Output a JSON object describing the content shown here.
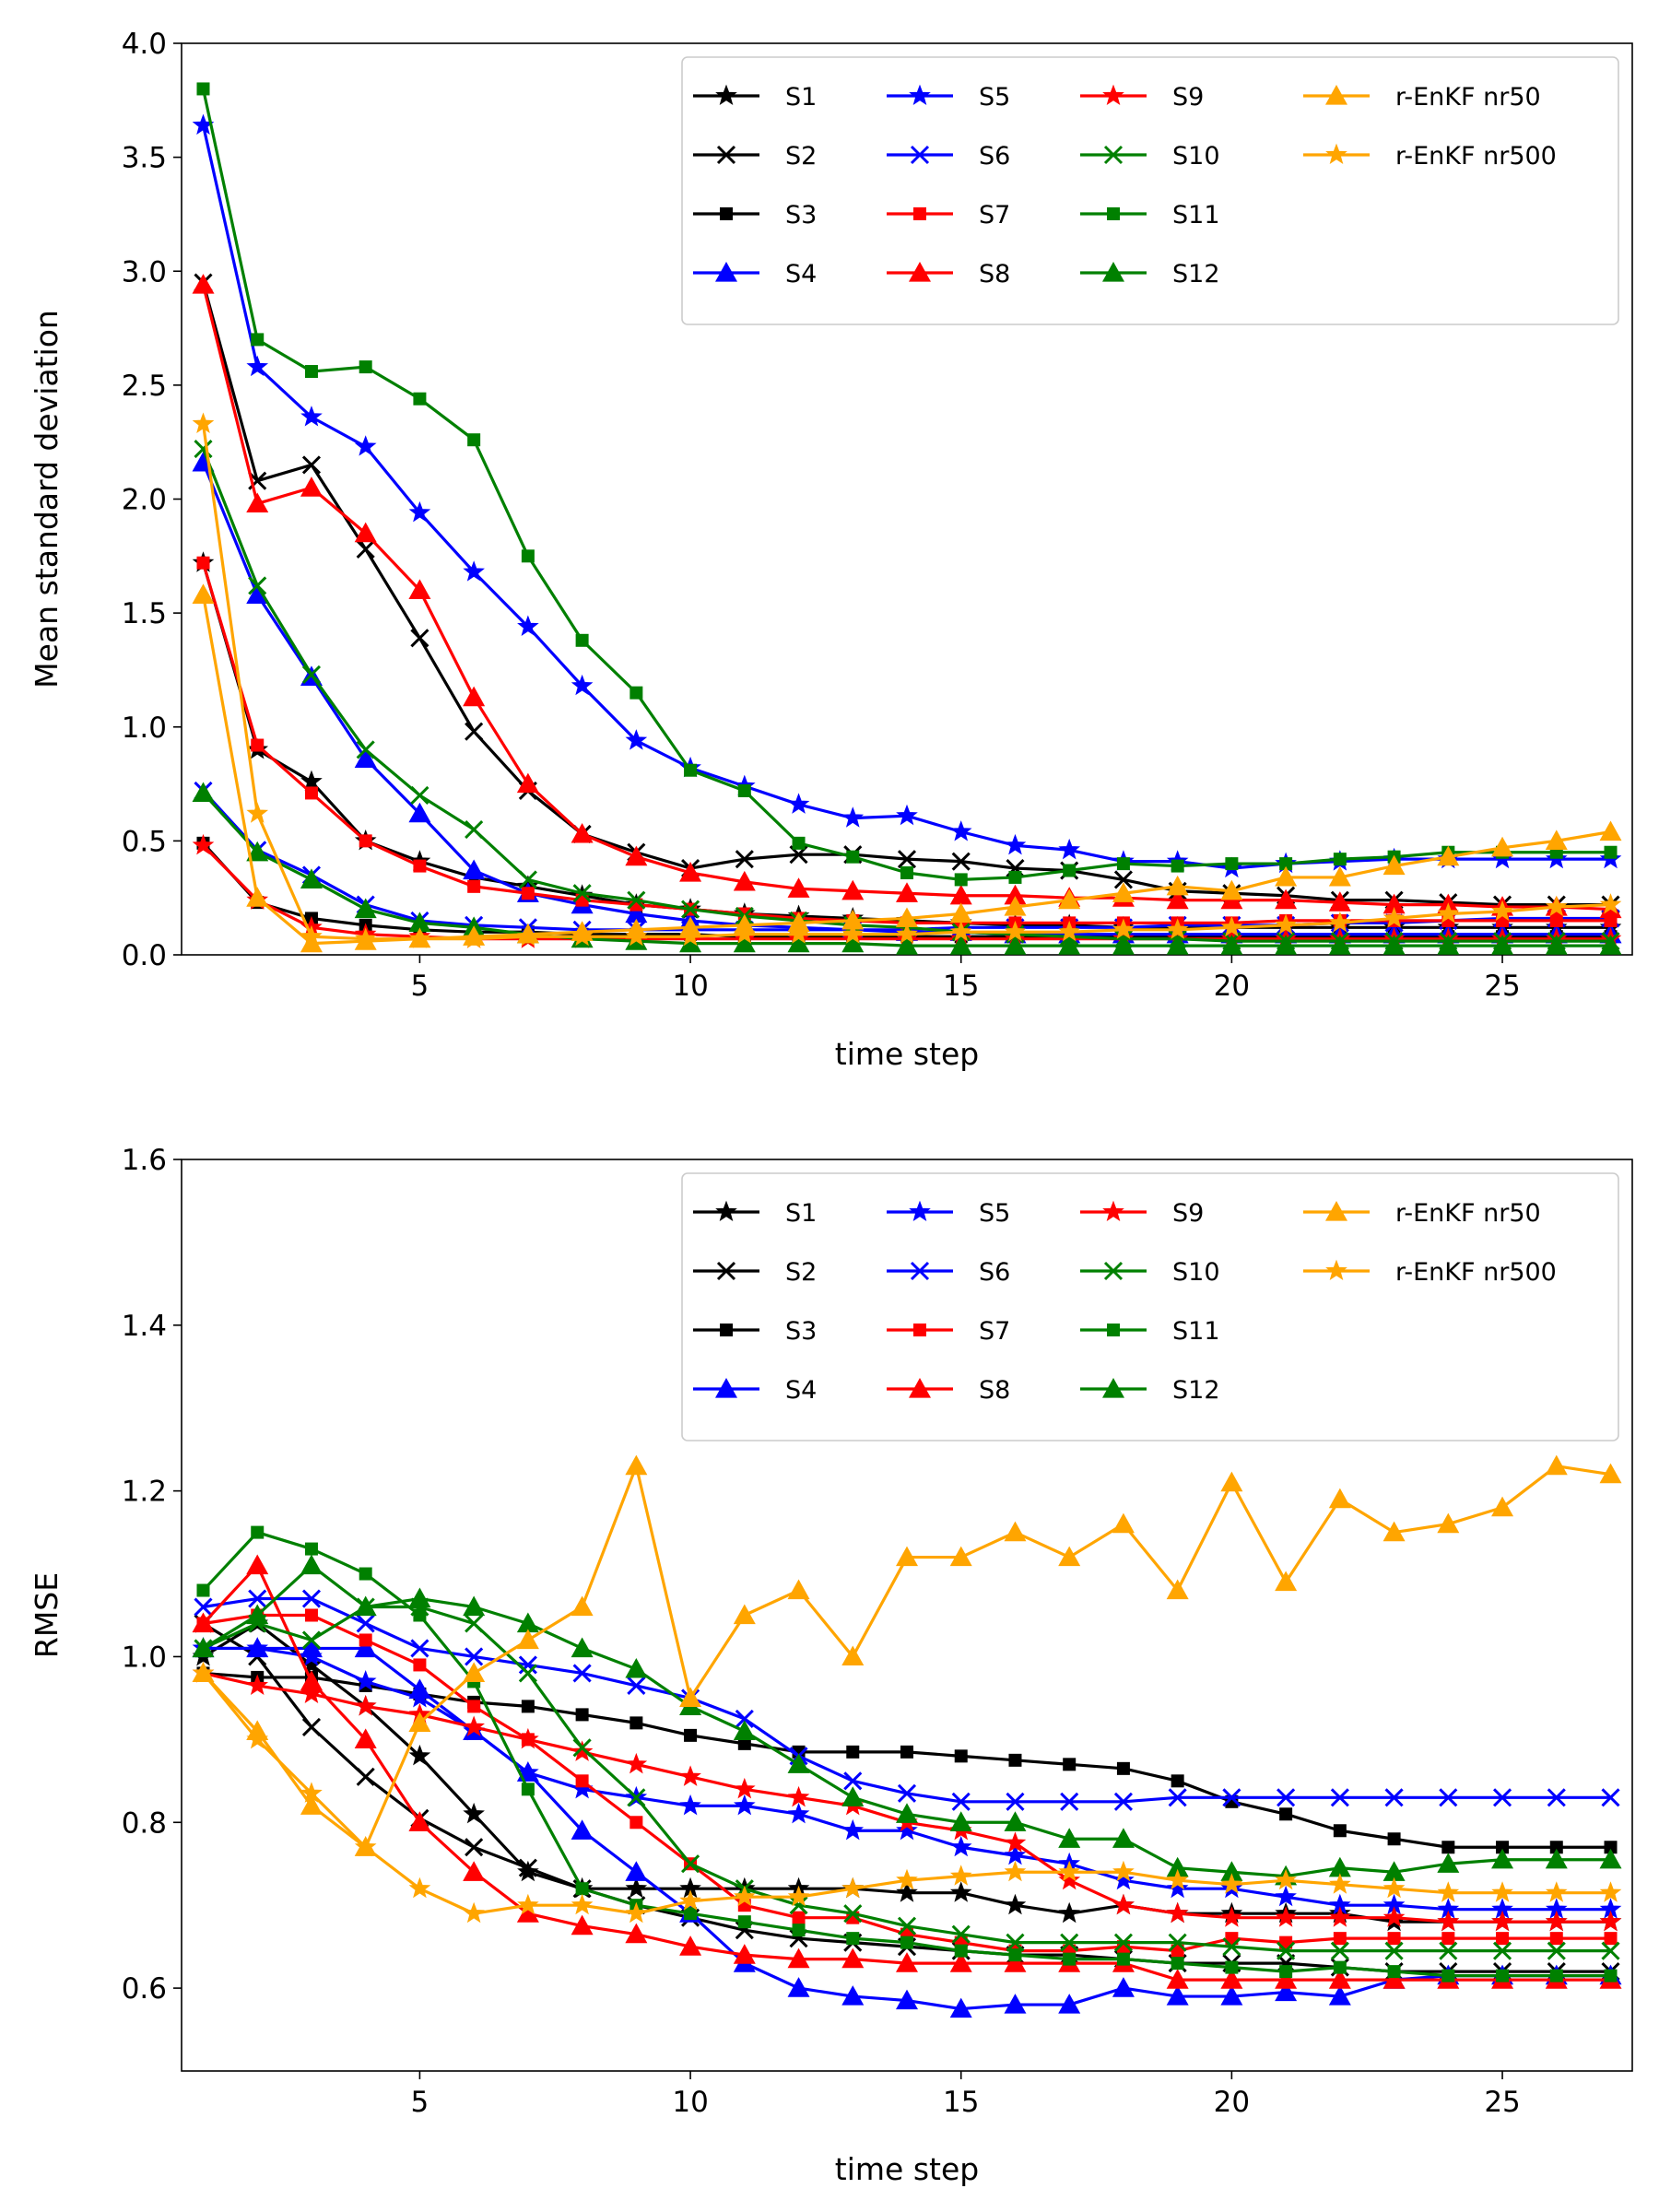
{
  "chart_data": [
    {
      "type": "line",
      "title": "",
      "xlabel": "time step",
      "ylabel": "Mean standard deviation",
      "xlim": [
        0.6,
        27.4
      ],
      "ylim": [
        0,
        4.0
      ],
      "xticks": [
        5,
        10,
        15,
        20,
        25
      ],
      "yticks": [
        0,
        0.5,
        1.0,
        1.5,
        2.0,
        2.5,
        3.0,
        3.5,
        4.0
      ],
      "ytick_labels": [
        "0.0",
        "0.5",
        "1.0",
        "1.5",
        "2.0",
        "2.5",
        "3.0",
        "3.5",
        "4.0"
      ],
      "legend_position": "top-right",
      "x": [
        1,
        2,
        3,
        4,
        5,
        6,
        7,
        8,
        9,
        10,
        11,
        12,
        13,
        14,
        15,
        16,
        17,
        18,
        19,
        20,
        21,
        22,
        23,
        24,
        25,
        26,
        27
      ],
      "series": [
        {
          "name": "S1",
          "color": "#000000",
          "marker": "star",
          "values": [
            1.72,
            0.9,
            0.76,
            0.5,
            0.41,
            0.34,
            0.3,
            0.26,
            0.22,
            0.2,
            0.18,
            0.17,
            0.16,
            0.15,
            0.14,
            0.13,
            0.13,
            0.12,
            0.12,
            0.12,
            0.12,
            0.12,
            0.12,
            0.12,
            0.12,
            0.12,
            0.12
          ]
        },
        {
          "name": "S2",
          "color": "#000000",
          "marker": "x",
          "values": [
            2.95,
            2.08,
            2.15,
            1.78,
            1.39,
            0.98,
            0.72,
            0.53,
            0.45,
            0.38,
            0.42,
            0.44,
            0.44,
            0.42,
            0.41,
            0.38,
            0.37,
            0.33,
            0.28,
            0.27,
            0.26,
            0.24,
            0.24,
            0.23,
            0.22,
            0.22,
            0.22
          ]
        },
        {
          "name": "S3",
          "color": "#000000",
          "marker": "square",
          "values": [
            0.49,
            0.23,
            0.16,
            0.13,
            0.11,
            0.1,
            0.1,
            0.09,
            0.09,
            0.09,
            0.08,
            0.08,
            0.08,
            0.08,
            0.08,
            0.08,
            0.08,
            0.08,
            0.08,
            0.08,
            0.08,
            0.08,
            0.08,
            0.08,
            0.08,
            0.08,
            0.08
          ]
        },
        {
          "name": "S4",
          "color": "#0000ff",
          "marker": "triangle",
          "values": [
            2.16,
            1.58,
            1.22,
            0.86,
            0.62,
            0.37,
            0.27,
            0.22,
            0.18,
            0.15,
            0.13,
            0.12,
            0.11,
            0.1,
            0.1,
            0.09,
            0.09,
            0.09,
            0.09,
            0.09,
            0.09,
            0.09,
            0.09,
            0.09,
            0.09,
            0.09,
            0.09
          ]
        },
        {
          "name": "S5",
          "color": "#0000ff",
          "marker": "star",
          "values": [
            3.64,
            2.58,
            2.36,
            2.23,
            1.94,
            1.68,
            1.44,
            1.18,
            0.94,
            0.82,
            0.74,
            0.66,
            0.6,
            0.61,
            0.54,
            0.48,
            0.46,
            0.41,
            0.41,
            0.38,
            0.4,
            0.41,
            0.42,
            0.42,
            0.42,
            0.42,
            0.42
          ]
        },
        {
          "name": "S6",
          "color": "#0000ff",
          "marker": "x",
          "values": [
            0.72,
            0.46,
            0.35,
            0.22,
            0.15,
            0.13,
            0.12,
            0.11,
            0.11,
            0.11,
            0.11,
            0.11,
            0.11,
            0.11,
            0.12,
            0.12,
            0.12,
            0.12,
            0.13,
            0.13,
            0.13,
            0.14,
            0.14,
            0.15,
            0.16,
            0.16,
            0.16
          ]
        },
        {
          "name": "S7",
          "color": "#ff0000",
          "marker": "square",
          "values": [
            1.72,
            0.92,
            0.71,
            0.5,
            0.39,
            0.3,
            0.27,
            0.24,
            0.22,
            0.2,
            0.18,
            0.16,
            0.15,
            0.14,
            0.14,
            0.14,
            0.14,
            0.14,
            0.14,
            0.14,
            0.15,
            0.15,
            0.15,
            0.15,
            0.15,
            0.15,
            0.15
          ]
        },
        {
          "name": "S8",
          "color": "#ff0000",
          "marker": "triangle",
          "values": [
            2.94,
            1.98,
            2.05,
            1.85,
            1.6,
            1.13,
            0.75,
            0.53,
            0.43,
            0.36,
            0.32,
            0.29,
            0.28,
            0.27,
            0.26,
            0.26,
            0.25,
            0.25,
            0.24,
            0.24,
            0.24,
            0.23,
            0.22,
            0.22,
            0.21,
            0.21,
            0.2
          ]
        },
        {
          "name": "S9",
          "color": "#ff0000",
          "marker": "star",
          "values": [
            0.48,
            0.24,
            0.12,
            0.09,
            0.08,
            0.07,
            0.07,
            0.07,
            0.07,
            0.07,
            0.07,
            0.07,
            0.07,
            0.07,
            0.07,
            0.07,
            0.07,
            0.07,
            0.07,
            0.07,
            0.07,
            0.07,
            0.07,
            0.07,
            0.07,
            0.07,
            0.07
          ]
        },
        {
          "name": "S10",
          "color": "#008000",
          "marker": "x",
          "values": [
            2.22,
            1.62,
            1.23,
            0.9,
            0.7,
            0.55,
            0.33,
            0.27,
            0.24,
            0.2,
            0.17,
            0.15,
            0.13,
            0.12,
            0.1,
            0.09,
            0.08,
            0.07,
            0.07,
            0.06,
            0.06,
            0.06,
            0.06,
            0.06,
            0.06,
            0.06,
            0.06
          ]
        },
        {
          "name": "S11",
          "color": "#008000",
          "marker": "square",
          "values": [
            3.8,
            2.7,
            2.56,
            2.58,
            2.44,
            2.26,
            1.75,
            1.38,
            1.15,
            0.81,
            0.72,
            0.49,
            0.43,
            0.36,
            0.33,
            0.34,
            0.37,
            0.4,
            0.39,
            0.4,
            0.4,
            0.42,
            0.43,
            0.45,
            0.45,
            0.45,
            0.45
          ]
        },
        {
          "name": "S12",
          "color": "#008000",
          "marker": "triangle",
          "values": [
            0.71,
            0.45,
            0.33,
            0.2,
            0.14,
            0.12,
            0.09,
            0.07,
            0.06,
            0.05,
            0.05,
            0.05,
            0.05,
            0.04,
            0.04,
            0.04,
            0.04,
            0.04,
            0.04,
            0.04,
            0.04,
            0.04,
            0.04,
            0.04,
            0.04,
            0.04,
            0.04
          ]
        },
        {
          "name": "r-EnKF nr50",
          "color": "#ffa500",
          "marker": "triangle",
          "values": [
            1.58,
            0.25,
            0.05,
            0.06,
            0.07,
            0.08,
            0.09,
            0.1,
            0.11,
            0.12,
            0.13,
            0.14,
            0.15,
            0.16,
            0.18,
            0.21,
            0.24,
            0.27,
            0.3,
            0.28,
            0.34,
            0.34,
            0.39,
            0.43,
            0.47,
            0.5,
            0.54
          ]
        },
        {
          "name": "r-EnKF nr500",
          "color": "#ffa500",
          "marker": "star",
          "values": [
            2.33,
            0.62,
            0.08,
            0.07,
            0.07,
            0.07,
            0.08,
            0.08,
            0.08,
            0.08,
            0.09,
            0.09,
            0.09,
            0.09,
            0.1,
            0.1,
            0.1,
            0.11,
            0.11,
            0.12,
            0.13,
            0.14,
            0.16,
            0.18,
            0.19,
            0.21,
            0.22
          ]
        }
      ]
    },
    {
      "type": "line",
      "title": "",
      "xlabel": "time step",
      "ylabel": "RMSE",
      "xlim": [
        0.6,
        27.4
      ],
      "ylim": [
        0.5,
        1.6
      ],
      "xticks": [
        5,
        10,
        15,
        20,
        25
      ],
      "yticks": [
        0.6,
        0.8,
        1.0,
        1.2,
        1.4,
        1.6
      ],
      "ytick_labels": [
        "0.6",
        "0.8",
        "1.0",
        "1.2",
        "1.4",
        "1.6"
      ],
      "legend_position": "top-right",
      "x": [
        1,
        2,
        3,
        4,
        5,
        6,
        7,
        8,
        9,
        10,
        11,
        12,
        13,
        14,
        15,
        16,
        17,
        18,
        19,
        20,
        21,
        22,
        23,
        24,
        25,
        26,
        27
      ],
      "series": [
        {
          "name": "S1",
          "color": "#000000",
          "marker": "star",
          "values": [
            1.0,
            1.04,
            0.99,
            0.94,
            0.88,
            0.81,
            0.74,
            0.72,
            0.72,
            0.72,
            0.72,
            0.72,
            0.72,
            0.715,
            0.715,
            0.7,
            0.69,
            0.7,
            0.69,
            0.69,
            0.69,
            0.69,
            0.68,
            0.68,
            0.68,
            0.68,
            0.68
          ]
        },
        {
          "name": "S2",
          "color": "#000000",
          "marker": "x",
          "values": [
            1.04,
            1.0,
            0.915,
            0.855,
            0.805,
            0.77,
            0.745,
            0.72,
            0.7,
            0.685,
            0.67,
            0.66,
            0.655,
            0.65,
            0.645,
            0.64,
            0.64,
            0.635,
            0.63,
            0.63,
            0.63,
            0.625,
            0.62,
            0.62,
            0.62,
            0.62,
            0.62
          ]
        },
        {
          "name": "S3",
          "color": "#000000",
          "marker": "square",
          "values": [
            0.98,
            0.975,
            0.975,
            0.965,
            0.955,
            0.945,
            0.94,
            0.93,
            0.92,
            0.905,
            0.895,
            0.885,
            0.885,
            0.885,
            0.88,
            0.875,
            0.87,
            0.865,
            0.85,
            0.825,
            0.81,
            0.79,
            0.78,
            0.77,
            0.77,
            0.77,
            0.77
          ]
        },
        {
          "name": "S4",
          "color": "#0000ff",
          "marker": "triangle",
          "values": [
            1.01,
            1.01,
            1.01,
            1.01,
            0.96,
            0.91,
            0.86,
            0.79,
            0.74,
            0.69,
            0.63,
            0.6,
            0.59,
            0.585,
            0.575,
            0.58,
            0.58,
            0.6,
            0.59,
            0.59,
            0.595,
            0.59,
            0.61,
            0.615,
            0.615,
            0.615,
            0.615
          ]
        },
        {
          "name": "S5",
          "color": "#0000ff",
          "marker": "star",
          "values": [
            1.01,
            1.01,
            1.0,
            0.97,
            0.95,
            0.91,
            0.86,
            0.84,
            0.83,
            0.82,
            0.82,
            0.81,
            0.79,
            0.79,
            0.77,
            0.76,
            0.75,
            0.73,
            0.72,
            0.72,
            0.71,
            0.7,
            0.7,
            0.695,
            0.695,
            0.695,
            0.695
          ]
        },
        {
          "name": "S6",
          "color": "#0000ff",
          "marker": "x",
          "values": [
            1.06,
            1.07,
            1.07,
            1.04,
            1.01,
            1.0,
            0.99,
            0.98,
            0.965,
            0.95,
            0.925,
            0.88,
            0.85,
            0.835,
            0.825,
            0.825,
            0.825,
            0.825,
            0.83,
            0.83,
            0.83,
            0.83,
            0.83,
            0.83,
            0.83,
            0.83,
            0.83
          ]
        },
        {
          "name": "S7",
          "color": "#ff0000",
          "marker": "square",
          "values": [
            1.04,
            1.05,
            1.05,
            1.02,
            0.99,
            0.94,
            0.9,
            0.85,
            0.8,
            0.75,
            0.7,
            0.685,
            0.685,
            0.665,
            0.655,
            0.645,
            0.645,
            0.65,
            0.645,
            0.66,
            0.655,
            0.66,
            0.66,
            0.66,
            0.66,
            0.66,
            0.66
          ]
        },
        {
          "name": "S8",
          "color": "#ff0000",
          "marker": "triangle",
          "values": [
            1.04,
            1.11,
            0.97,
            0.9,
            0.8,
            0.74,
            0.69,
            0.675,
            0.665,
            0.65,
            0.64,
            0.635,
            0.635,
            0.63,
            0.63,
            0.63,
            0.63,
            0.63,
            0.61,
            0.61,
            0.61,
            0.61,
            0.61,
            0.61,
            0.61,
            0.61,
            0.61
          ]
        },
        {
          "name": "S9",
          "color": "#ff0000",
          "marker": "star",
          "values": [
            0.98,
            0.965,
            0.955,
            0.94,
            0.93,
            0.915,
            0.9,
            0.885,
            0.87,
            0.855,
            0.84,
            0.83,
            0.82,
            0.8,
            0.79,
            0.775,
            0.73,
            0.7,
            0.69,
            0.685,
            0.685,
            0.685,
            0.685,
            0.68,
            0.68,
            0.68,
            0.68
          ]
        },
        {
          "name": "S10",
          "color": "#008000",
          "marker": "x",
          "values": [
            1.01,
            1.04,
            1.02,
            1.06,
            1.06,
            1.04,
            0.98,
            0.89,
            0.83,
            0.75,
            0.72,
            0.7,
            0.69,
            0.675,
            0.665,
            0.655,
            0.655,
            0.655,
            0.655,
            0.65,
            0.645,
            0.645,
            0.645,
            0.645,
            0.645,
            0.645,
            0.645
          ]
        },
        {
          "name": "S11",
          "color": "#008000",
          "marker": "square",
          "values": [
            1.08,
            1.15,
            1.13,
            1.1,
            1.05,
            0.97,
            0.84,
            0.72,
            0.7,
            0.69,
            0.68,
            0.67,
            0.66,
            0.655,
            0.645,
            0.64,
            0.635,
            0.635,
            0.63,
            0.625,
            0.62,
            0.625,
            0.62,
            0.615,
            0.615,
            0.615,
            0.615
          ]
        },
        {
          "name": "S12",
          "color": "#008000",
          "marker": "triangle",
          "values": [
            1.01,
            1.05,
            1.11,
            1.06,
            1.07,
            1.06,
            1.04,
            1.01,
            0.985,
            0.94,
            0.91,
            0.87,
            0.83,
            0.81,
            0.8,
            0.8,
            0.78,
            0.78,
            0.745,
            0.74,
            0.735,
            0.745,
            0.74,
            0.75,
            0.755,
            0.755,
            0.755
          ]
        },
        {
          "name": "r-EnKF nr50",
          "color": "#ffa500",
          "marker": "triangle",
          "values": [
            0.98,
            0.91,
            0.82,
            0.77,
            0.92,
            0.98,
            1.02,
            1.06,
            1.23,
            0.95,
            1.05,
            1.08,
            1.0,
            1.12,
            1.12,
            1.15,
            1.12,
            1.16,
            1.08,
            1.21,
            1.09,
            1.19,
            1.15,
            1.16,
            1.18,
            1.23,
            1.22
          ]
        },
        {
          "name": "r-EnKF nr500",
          "color": "#ffa500",
          "marker": "star",
          "values": [
            0.98,
            0.9,
            0.835,
            0.77,
            0.72,
            0.69,
            0.7,
            0.7,
            0.69,
            0.705,
            0.71,
            0.71,
            0.72,
            0.73,
            0.735,
            0.74,
            0.74,
            0.74,
            0.73,
            0.725,
            0.73,
            0.725,
            0.72,
            0.715,
            0.715,
            0.715,
            0.715
          ]
        }
      ]
    }
  ]
}
